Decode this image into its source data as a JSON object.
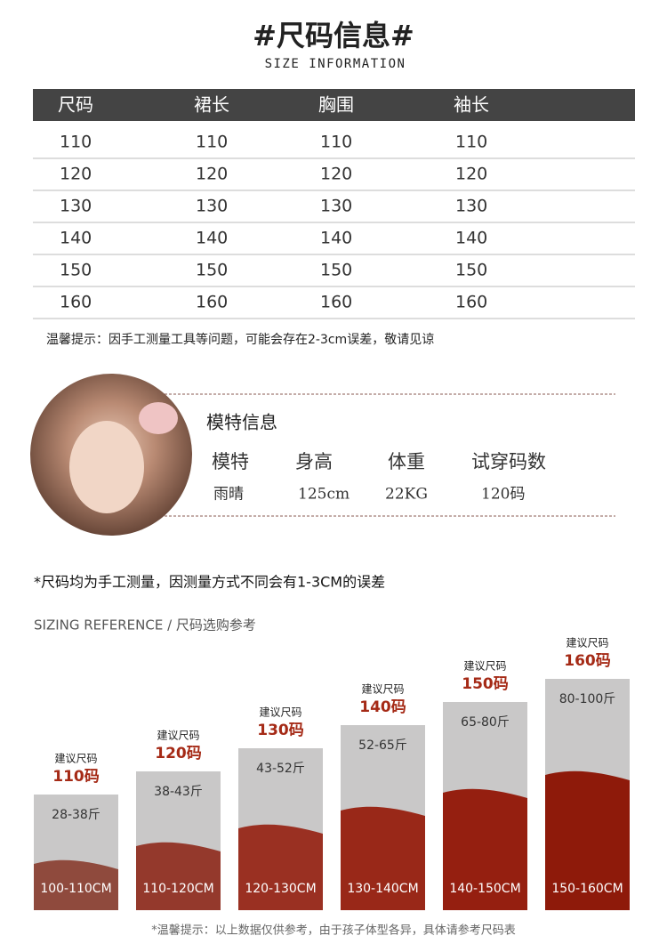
{
  "header": {
    "title": "#尺码信息#",
    "subtitle": "SIZE INFORMATION"
  },
  "size_table": {
    "columns": [
      "尺码",
      "裙长",
      "胸围",
      "袖长"
    ],
    "rows": [
      [
        "110",
        "110",
        "110",
        "110"
      ],
      [
        "120",
        "120",
        "120",
        "120"
      ],
      [
        "130",
        "130",
        "130",
        "130"
      ],
      [
        "140",
        "140",
        "140",
        "140"
      ],
      [
        "150",
        "150",
        "150",
        "150"
      ],
      [
        "160",
        "160",
        "160",
        "160"
      ]
    ]
  },
  "table_note": "温馨提示：因手工测量工具等问题，可能会存在2-3cm误差，敬请见谅",
  "model": {
    "title": "模特信息",
    "columns": [
      "模特",
      "身高",
      "体重",
      "试穿码数"
    ],
    "values": [
      "雨晴",
      "125cm",
      "22KG",
      "120码"
    ]
  },
  "measure_note": "*尺码均为手工测量，因测量方式不同会有1-3CM的误差",
  "reference": {
    "title": "SIZING REFERENCE / 尺码选购参考",
    "columns": [
      {
        "label": "建议尺码",
        "size": "110码",
        "weight": "28-38斤",
        "height": "100-110CM"
      },
      {
        "label": "建议尺码",
        "size": "120码",
        "weight": "38-43斤",
        "height": "110-120CM"
      },
      {
        "label": "建议尺码",
        "size": "130码",
        "weight": "43-52斤",
        "height": "120-130CM"
      },
      {
        "label": "建议尺码",
        "size": "140码",
        "weight": "52-65斤",
        "height": "130-140CM"
      },
      {
        "label": "建议尺码",
        "size": "150码",
        "weight": "65-80斤",
        "height": "140-150CM"
      },
      {
        "label": "建议尺码",
        "size": "160码",
        "weight": "80-100斤",
        "height": "150-160CM"
      }
    ]
  },
  "footer_note": "*温馨提示：以上数据仅供参考，由于孩子体型各异，具体请参考尺码表"
}
